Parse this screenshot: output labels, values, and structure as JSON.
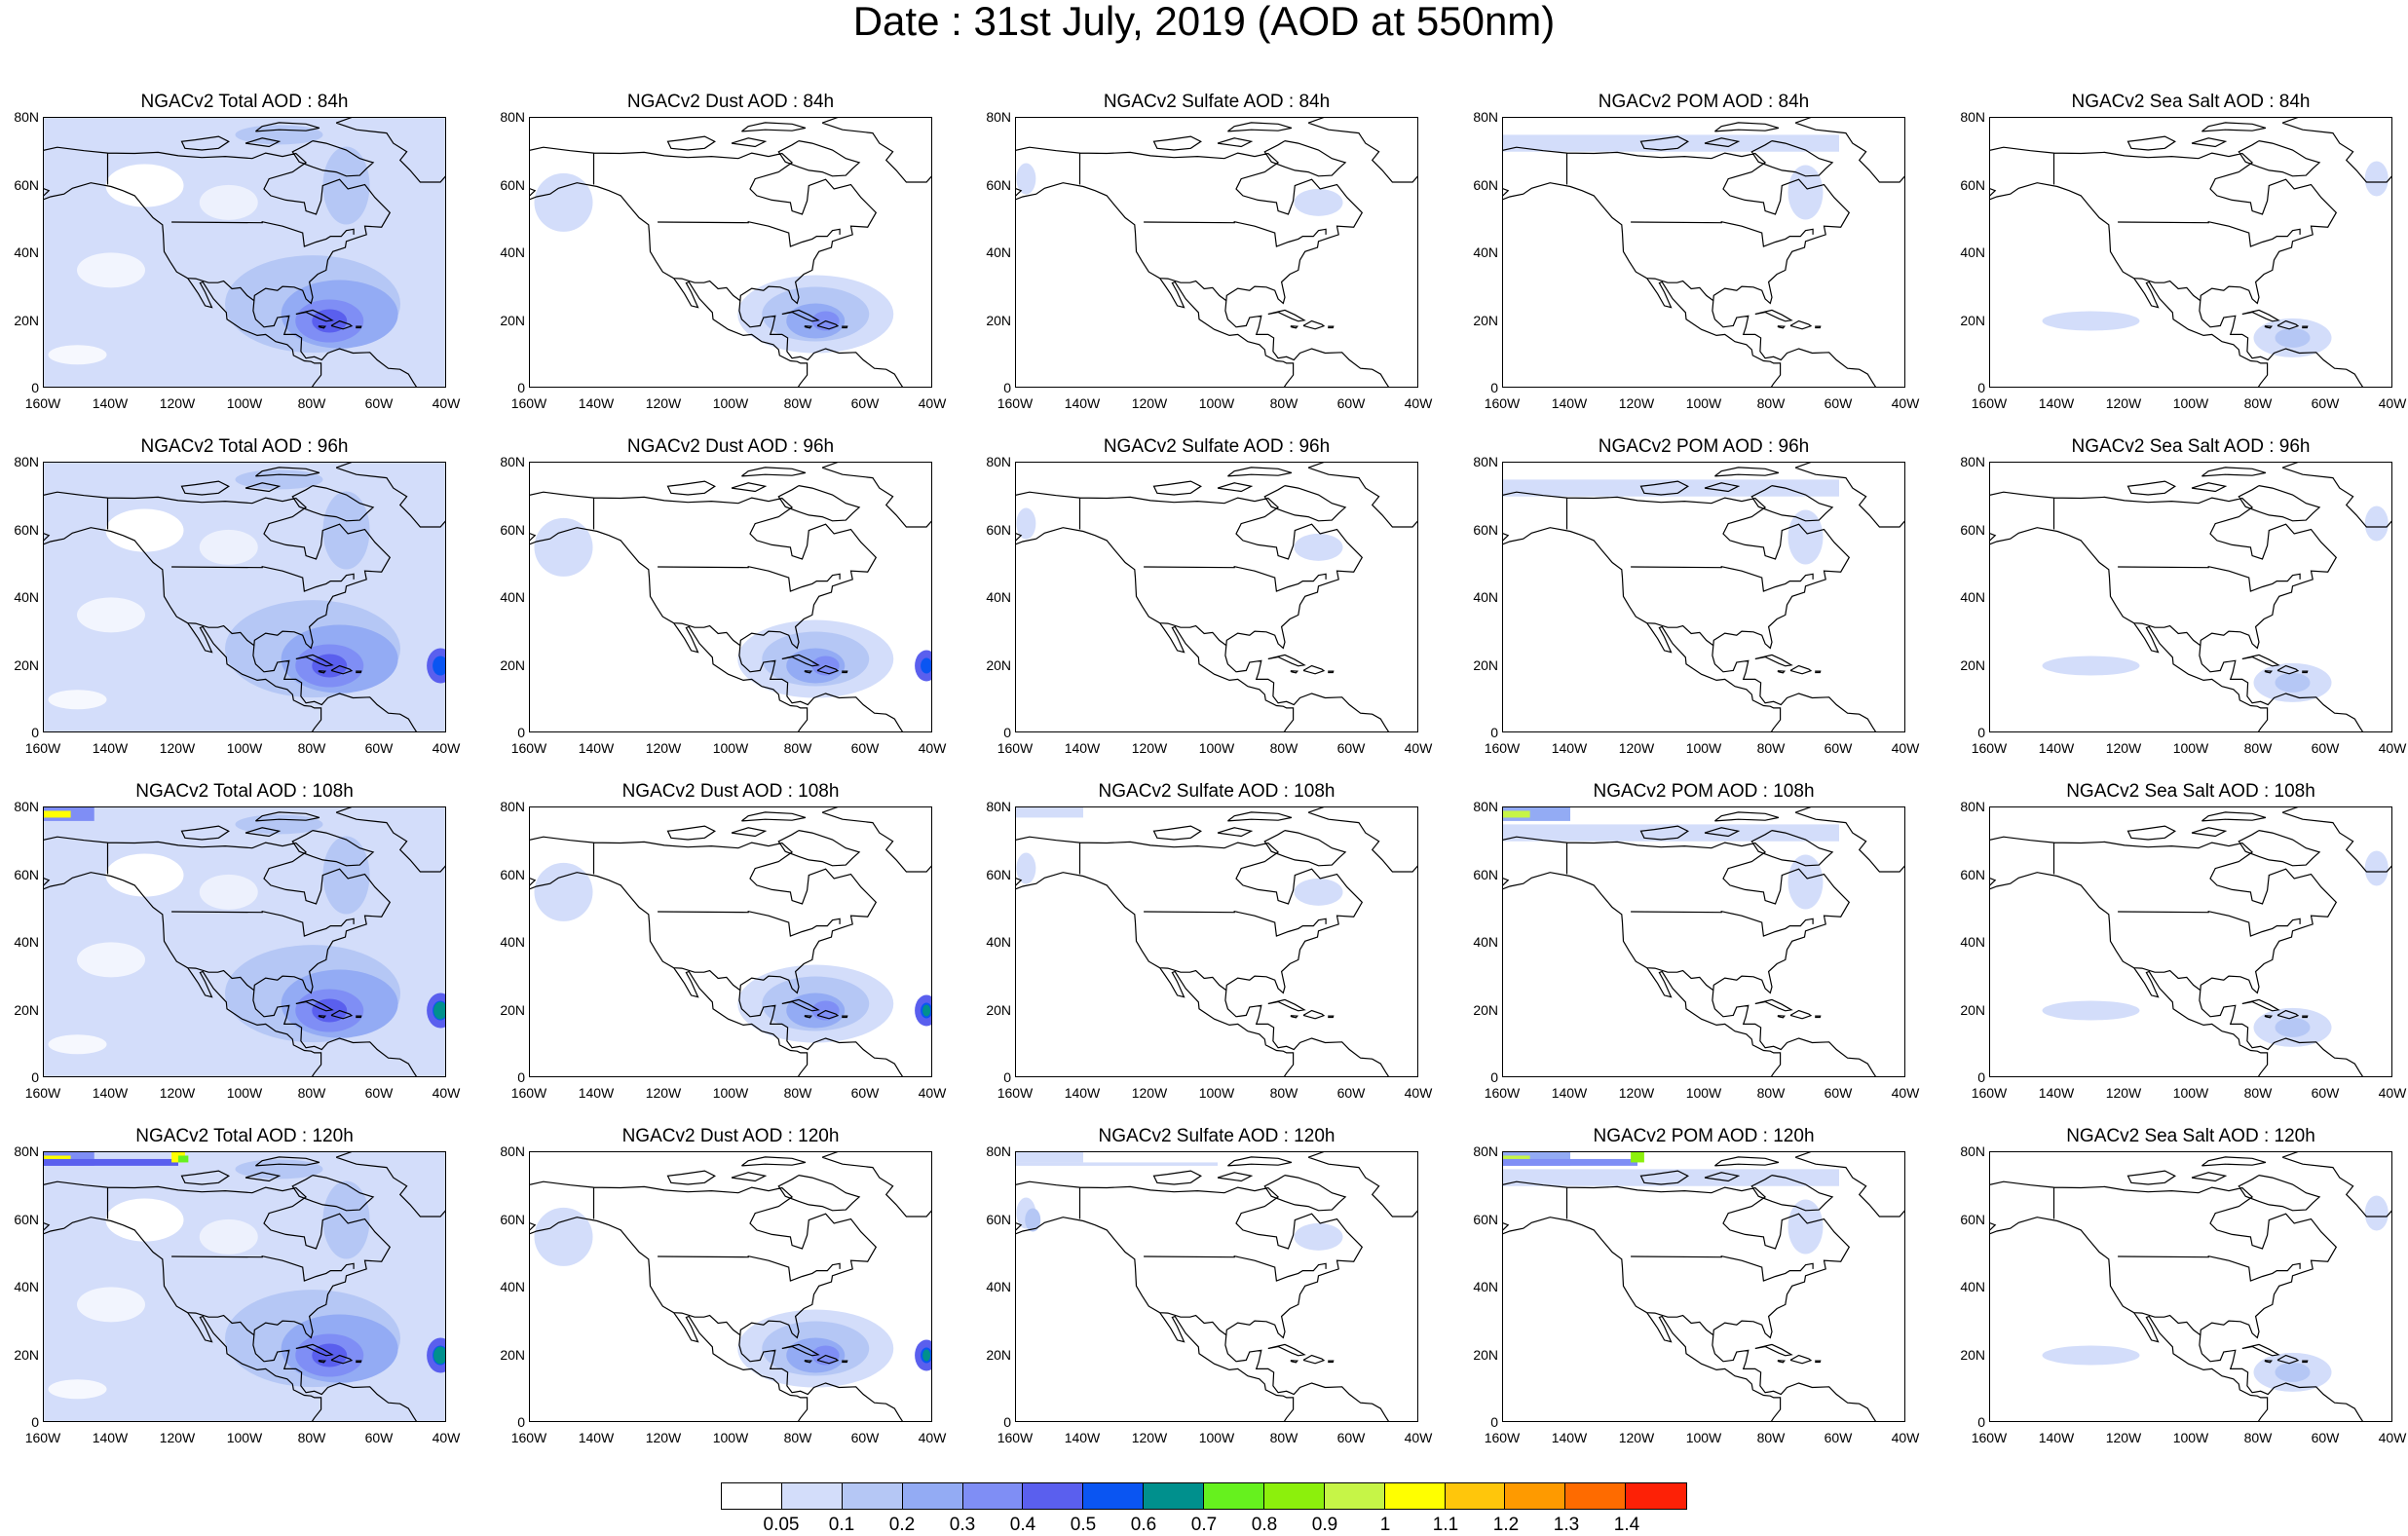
{
  "title": "Date : 31st July, 2019 (AOD at 550nm)",
  "lat_ticks": [
    "80N",
    "60N",
    "40N",
    "20N",
    "0"
  ],
  "lon_ticks": [
    "160W",
    "140W",
    "120W",
    "100W",
    "80W",
    "60W",
    "40W"
  ],
  "colors": {
    "levels": [
      "#ffffff",
      "#d3ddfa",
      "#b5c7f5",
      "#93abf4",
      "#7f8ef5",
      "#5a5fee",
      "#0a55f2",
      "#00908d",
      "#66f11e",
      "#8cf00c",
      "#c6f547",
      "#ffff00",
      "#ffc60b",
      "#fe9a00",
      "#fe6b00",
      "#fd2106"
    ]
  },
  "colorbar": {
    "labels": [
      "0.05",
      "0.1",
      "0.2",
      "0.3",
      "0.4",
      "0.5",
      "0.6",
      "0.7",
      "0.8",
      "0.9",
      "1",
      "1.1",
      "1.2",
      "1.3",
      "1.4"
    ]
  },
  "panels": [
    {
      "title": "NGACv2 Total AOD : 84h",
      "species": "total",
      "hour": 84
    },
    {
      "title": "NGACv2 Dust AOD : 84h",
      "species": "dust",
      "hour": 84
    },
    {
      "title": "NGACv2 Sulfate AOD : 84h",
      "species": "sulfate",
      "hour": 84
    },
    {
      "title": "NGACv2 POM AOD : 84h",
      "species": "pom",
      "hour": 84
    },
    {
      "title": "NGACv2 Sea Salt AOD : 84h",
      "species": "seasalt",
      "hour": 84
    },
    {
      "title": "NGACv2 Total AOD : 96h",
      "species": "total",
      "hour": 96
    },
    {
      "title": "NGACv2 Dust AOD : 96h",
      "species": "dust",
      "hour": 96
    },
    {
      "title": "NGACv2 Sulfate AOD : 96h",
      "species": "sulfate",
      "hour": 96
    },
    {
      "title": "NGACv2 POM AOD : 96h",
      "species": "pom",
      "hour": 96
    },
    {
      "title": "NGACv2 Sea Salt AOD : 96h",
      "species": "seasalt",
      "hour": 96
    },
    {
      "title": "NGACv2 Total AOD : 108h",
      "species": "total",
      "hour": 108
    },
    {
      "title": "NGACv2 Dust AOD : 108h",
      "species": "dust",
      "hour": 108
    },
    {
      "title": "NGACv2 Sulfate AOD : 108h",
      "species": "sulfate",
      "hour": 108
    },
    {
      "title": "NGACv2 POM AOD : 108h",
      "species": "pom",
      "hour": 108
    },
    {
      "title": "NGACv2 Sea Salt AOD : 108h",
      "species": "seasalt",
      "hour": 108
    },
    {
      "title": "NGACv2 Total AOD : 120h",
      "species": "total",
      "hour": 120
    },
    {
      "title": "NGACv2 Dust AOD : 120h",
      "species": "dust",
      "hour": 120
    },
    {
      "title": "NGACv2 Sulfate AOD : 120h",
      "species": "sulfate",
      "hour": 120
    },
    {
      "title": "NGACv2 POM AOD : 120h",
      "species": "pom",
      "hour": 120
    },
    {
      "title": "NGACv2 Sea Salt  AOD : 120h",
      "species": "seasalt",
      "hour": 120
    }
  ]
}
